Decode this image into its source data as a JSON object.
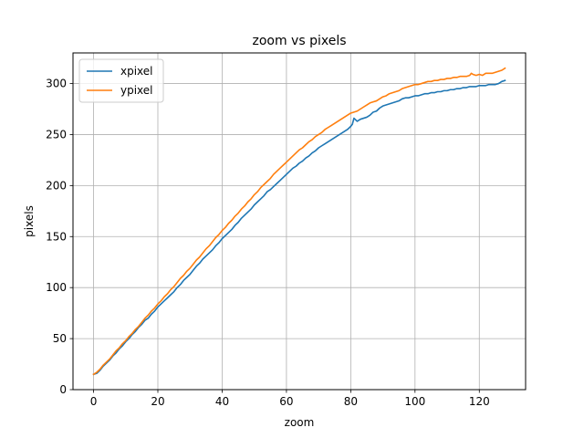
{
  "chart_data": {
    "type": "line",
    "title": "zoom vs pixels",
    "xlabel": "zoom",
    "ylabel": "pixels",
    "xlim": [
      -6.4,
      134.4
    ],
    "ylim": [
      0,
      330
    ],
    "xticks": [
      0,
      20,
      40,
      60,
      80,
      100,
      120
    ],
    "yticks": [
      0,
      50,
      100,
      150,
      200,
      250,
      300
    ],
    "grid": true,
    "legend": "top-left",
    "series": [
      {
        "name": "xpixel",
        "color": "#1f77b4",
        "points": [
          [
            0,
            15
          ],
          [
            1,
            16
          ],
          [
            2,
            19
          ],
          [
            3,
            23
          ],
          [
            4,
            26
          ],
          [
            5,
            29
          ],
          [
            6,
            33
          ],
          [
            7,
            36
          ],
          [
            8,
            40
          ],
          [
            9,
            43
          ],
          [
            10,
            47
          ],
          [
            11,
            50
          ],
          [
            12,
            54
          ],
          [
            13,
            57
          ],
          [
            14,
            61
          ],
          [
            15,
            64
          ],
          [
            16,
            68
          ],
          [
            17,
            70
          ],
          [
            18,
            74
          ],
          [
            19,
            77
          ],
          [
            20,
            81
          ],
          [
            21,
            84
          ],
          [
            22,
            87
          ],
          [
            23,
            90
          ],
          [
            24,
            93
          ],
          [
            25,
            96
          ],
          [
            26,
            100
          ],
          [
            27,
            103
          ],
          [
            28,
            107
          ],
          [
            29,
            110
          ],
          [
            30,
            113
          ],
          [
            31,
            117
          ],
          [
            32,
            121
          ],
          [
            33,
            124
          ],
          [
            34,
            128
          ],
          [
            35,
            131
          ],
          [
            36,
            134
          ],
          [
            37,
            137
          ],
          [
            38,
            141
          ],
          [
            39,
            144
          ],
          [
            40,
            148
          ],
          [
            41,
            151
          ],
          [
            42,
            154
          ],
          [
            43,
            157
          ],
          [
            44,
            161
          ],
          [
            45,
            164
          ],
          [
            46,
            168
          ],
          [
            47,
            171
          ],
          [
            48,
            174
          ],
          [
            49,
            177
          ],
          [
            50,
            181
          ],
          [
            51,
            184
          ],
          [
            52,
            187
          ],
          [
            53,
            190
          ],
          [
            54,
            194
          ],
          [
            55,
            196
          ],
          [
            56,
            199
          ],
          [
            57,
            202
          ],
          [
            58,
            205
          ],
          [
            59,
            208
          ],
          [
            60,
            211
          ],
          [
            61,
            214
          ],
          [
            62,
            217
          ],
          [
            63,
            219
          ],
          [
            64,
            222
          ],
          [
            65,
            224
          ],
          [
            66,
            227
          ],
          [
            67,
            229
          ],
          [
            68,
            232
          ],
          [
            69,
            234
          ],
          [
            70,
            237
          ],
          [
            71,
            239
          ],
          [
            72,
            241
          ],
          [
            73,
            243
          ],
          [
            74,
            245
          ],
          [
            75,
            247
          ],
          [
            76,
            249
          ],
          [
            77,
            251
          ],
          [
            78,
            253
          ],
          [
            79,
            255
          ],
          [
            80,
            258
          ],
          [
            80.5,
            260
          ],
          [
            81,
            266
          ],
          [
            82,
            263
          ],
          [
            83,
            265
          ],
          [
            84,
            266
          ],
          [
            85,
            267
          ],
          [
            86,
            269
          ],
          [
            87,
            272
          ],
          [
            88,
            273
          ],
          [
            89,
            276
          ],
          [
            90,
            278
          ],
          [
            91,
            279
          ],
          [
            92,
            280
          ],
          [
            93,
            281
          ],
          [
            94,
            282
          ],
          [
            95,
            283
          ],
          [
            96,
            285
          ],
          [
            97,
            286
          ],
          [
            98,
            286
          ],
          [
            99,
            287
          ],
          [
            100,
            288
          ],
          [
            101,
            288
          ],
          [
            102,
            289
          ],
          [
            103,
            290
          ],
          [
            104,
            290
          ],
          [
            105,
            291
          ],
          [
            106,
            291
          ],
          [
            107,
            292
          ],
          [
            108,
            292
          ],
          [
            109,
            293
          ],
          [
            110,
            293
          ],
          [
            111,
            294
          ],
          [
            112,
            294
          ],
          [
            113,
            295
          ],
          [
            114,
            295
          ],
          [
            115,
            296
          ],
          [
            116,
            296
          ],
          [
            117,
            297
          ],
          [
            118,
            297
          ],
          [
            119,
            297
          ],
          [
            120,
            298
          ],
          [
            121,
            298
          ],
          [
            122,
            298
          ],
          [
            123,
            299
          ],
          [
            124,
            299
          ],
          [
            125,
            299
          ],
          [
            126,
            300
          ],
          [
            127,
            302
          ],
          [
            128,
            303
          ]
        ]
      },
      {
        "name": "ypixel",
        "color": "#ff7f0e",
        "points": [
          [
            0,
            15
          ],
          [
            1,
            17
          ],
          [
            2,
            20
          ],
          [
            3,
            24
          ],
          [
            4,
            27
          ],
          [
            5,
            30
          ],
          [
            6,
            34
          ],
          [
            7,
            38
          ],
          [
            8,
            41
          ],
          [
            9,
            45
          ],
          [
            10,
            48
          ],
          [
            11,
            52
          ],
          [
            12,
            55
          ],
          [
            13,
            59
          ],
          [
            14,
            62
          ],
          [
            15,
            66
          ],
          [
            16,
            70
          ],
          [
            17,
            73
          ],
          [
            18,
            77
          ],
          [
            19,
            80
          ],
          [
            20,
            84
          ],
          [
            21,
            87
          ],
          [
            22,
            91
          ],
          [
            23,
            94
          ],
          [
            24,
            98
          ],
          [
            25,
            101
          ],
          [
            26,
            105
          ],
          [
            27,
            109
          ],
          [
            28,
            112
          ],
          [
            29,
            116
          ],
          [
            30,
            119
          ],
          [
            31,
            123
          ],
          [
            32,
            127
          ],
          [
            33,
            130
          ],
          [
            34,
            134
          ],
          [
            35,
            138
          ],
          [
            36,
            141
          ],
          [
            37,
            145
          ],
          [
            38,
            149
          ],
          [
            39,
            152
          ],
          [
            40,
            156
          ],
          [
            41,
            159
          ],
          [
            42,
            163
          ],
          [
            43,
            166
          ],
          [
            44,
            170
          ],
          [
            45,
            173
          ],
          [
            46,
            177
          ],
          [
            47,
            180
          ],
          [
            48,
            184
          ],
          [
            49,
            187
          ],
          [
            50,
            191
          ],
          [
            51,
            194
          ],
          [
            52,
            198
          ],
          [
            53,
            201
          ],
          [
            54,
            204
          ],
          [
            55,
            207
          ],
          [
            56,
            211
          ],
          [
            57,
            214
          ],
          [
            58,
            217
          ],
          [
            59,
            220
          ],
          [
            60,
            223
          ],
          [
            61,
            226
          ],
          [
            62,
            229
          ],
          [
            63,
            232
          ],
          [
            64,
            235
          ],
          [
            65,
            237
          ],
          [
            66,
            240
          ],
          [
            67,
            243
          ],
          [
            68,
            245
          ],
          [
            69,
            248
          ],
          [
            70,
            250
          ],
          [
            71,
            252
          ],
          [
            72,
            255
          ],
          [
            73,
            257
          ],
          [
            74,
            259
          ],
          [
            75,
            261
          ],
          [
            76,
            263
          ],
          [
            77,
            265
          ],
          [
            78,
            267
          ],
          [
            79,
            269
          ],
          [
            80,
            271
          ],
          [
            81,
            272
          ],
          [
            82,
            273
          ],
          [
            83,
            275
          ],
          [
            84,
            277
          ],
          [
            85,
            279
          ],
          [
            86,
            281
          ],
          [
            87,
            282
          ],
          [
            88,
            283
          ],
          [
            89,
            285
          ],
          [
            90,
            287
          ],
          [
            91,
            288
          ],
          [
            92,
            290
          ],
          [
            93,
            291
          ],
          [
            94,
            292
          ],
          [
            95,
            293
          ],
          [
            96,
            295
          ],
          [
            97,
            296
          ],
          [
            98,
            297
          ],
          [
            99,
            298
          ],
          [
            100,
            299
          ],
          [
            101,
            299
          ],
          [
            102,
            300
          ],
          [
            103,
            301
          ],
          [
            104,
            302
          ],
          [
            105,
            302
          ],
          [
            106,
            303
          ],
          [
            107,
            303
          ],
          [
            108,
            304
          ],
          [
            109,
            304
          ],
          [
            110,
            305
          ],
          [
            111,
            305
          ],
          [
            112,
            306
          ],
          [
            113,
            306
          ],
          [
            114,
            307
          ],
          [
            115,
            307
          ],
          [
            116,
            307
          ],
          [
            117,
            308
          ],
          [
            117.5,
            310
          ],
          [
            118,
            309
          ],
          [
            119,
            308
          ],
          [
            120,
            309
          ],
          [
            121,
            308
          ],
          [
            122,
            310
          ],
          [
            123,
            310
          ],
          [
            124,
            310
          ],
          [
            125,
            311
          ],
          [
            126,
            312
          ],
          [
            127,
            313
          ],
          [
            128,
            315
          ]
        ]
      }
    ]
  }
}
